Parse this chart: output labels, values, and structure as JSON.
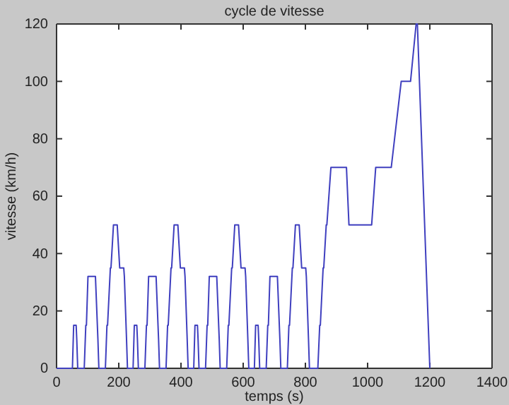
{
  "chart_data": {
    "type": "line",
    "title": "cycle de vitesse",
    "xlabel": "temps (s)",
    "ylabel": "vitesse (km/h)",
    "xlim": [
      0,
      1400
    ],
    "xticks": [
      0,
      200,
      400,
      600,
      800,
      1000,
      1200,
      1400
    ],
    "ylim": [
      0,
      120
    ],
    "yticks": [
      0,
      20,
      40,
      60,
      80,
      100,
      120
    ],
    "grid": false,
    "marker": "none",
    "line_style": "solid",
    "series": [
      {
        "color": "#3f3fbf",
        "x": [
          0,
          51,
          55,
          63,
          65,
          68,
          89,
          94,
          96,
          101,
          125,
          133,
          136,
          157,
          162,
          164,
          173,
          175,
          183,
          195,
          203,
          216,
          218,
          225,
          228,
          246,
          250,
          258,
          260,
          263,
          284,
          289,
          291,
          296,
          320,
          328,
          331,
          352,
          357,
          359,
          368,
          370,
          378,
          390,
          398,
          411,
          413,
          420,
          423,
          441,
          445,
          453,
          455,
          458,
          479,
          484,
          486,
          491,
          515,
          523,
          526,
          547,
          552,
          554,
          563,
          565,
          573,
          585,
          593,
          606,
          608,
          615,
          618,
          636,
          640,
          648,
          650,
          653,
          674,
          679,
          681,
          686,
          710,
          718,
          721,
          742,
          747,
          749,
          758,
          760,
          768,
          780,
          788,
          801,
          803,
          810,
          813,
          840,
          846,
          848,
          857,
          859,
          867,
          869,
          882,
          932,
          940,
          1009,
          1013,
          1026,
          1076,
          1108,
          1138,
          1156,
          1160,
          1200
        ],
        "values": [
          0,
          0,
          15,
          15,
          10,
          0,
          0,
          15,
          15,
          32,
          32,
          10,
          0,
          0,
          15,
          15,
          35,
          35,
          50,
          50,
          35,
          35,
          32,
          10,
          0,
          0,
          15,
          15,
          10,
          0,
          0,
          15,
          15,
          32,
          32,
          10,
          0,
          0,
          15,
          15,
          35,
          35,
          50,
          50,
          35,
          35,
          32,
          10,
          0,
          0,
          15,
          15,
          10,
          0,
          0,
          15,
          15,
          32,
          32,
          10,
          0,
          0,
          15,
          15,
          35,
          35,
          50,
          50,
          35,
          35,
          32,
          10,
          0,
          0,
          15,
          15,
          10,
          0,
          0,
          15,
          15,
          32,
          32,
          10,
          0,
          0,
          15,
          15,
          35,
          35,
          50,
          50,
          35,
          35,
          32,
          10,
          0,
          0,
          15,
          15,
          35,
          35,
          50,
          50,
          70,
          70,
          50,
          50,
          50,
          70,
          70,
          100,
          100,
          120,
          120,
          0
        ]
      }
    ]
  }
}
